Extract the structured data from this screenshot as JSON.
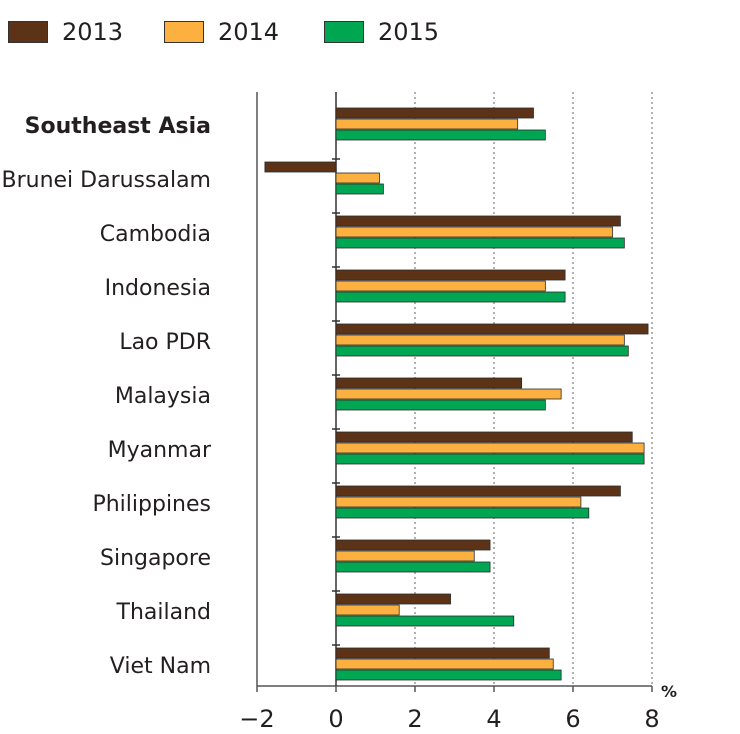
{
  "chart_data": {
    "type": "bar",
    "orientation": "horizontal",
    "categories": [
      "Southeast Asia",
      "Brunei Darussalam",
      "Cambodia",
      "Indonesia",
      "Lao PDR",
      "Malaysia",
      "Myanmar",
      "Philippines",
      "Singapore",
      "Thailand",
      "Viet Nam"
    ],
    "emphasized_category": "Southeast Asia",
    "series": [
      {
        "name": "2013",
        "color": "#5c3317",
        "values": [
          5.0,
          -1.8,
          7.2,
          5.8,
          7.9,
          4.7,
          7.5,
          7.2,
          3.9,
          2.9,
          5.4
        ]
      },
      {
        "name": "2014",
        "color": "#fbb040",
        "values": [
          4.6,
          1.1,
          7.0,
          5.3,
          7.3,
          5.7,
          7.8,
          6.2,
          3.5,
          1.6,
          5.5
        ]
      },
      {
        "name": "2015",
        "color": "#00a651",
        "values": [
          5.3,
          1.2,
          7.3,
          5.8,
          7.4,
          5.3,
          7.8,
          6.4,
          3.9,
          4.5,
          5.7
        ]
      }
    ],
    "xlim": [
      -2,
      8
    ],
    "xticks": [
      -2,
      0,
      2,
      4,
      6,
      8
    ],
    "xtick_labels": [
      "−2",
      "0",
      "2",
      "4",
      "6",
      "8"
    ],
    "unit": "%",
    "grid": "vertical dotted",
    "legend_position": "top-left"
  }
}
